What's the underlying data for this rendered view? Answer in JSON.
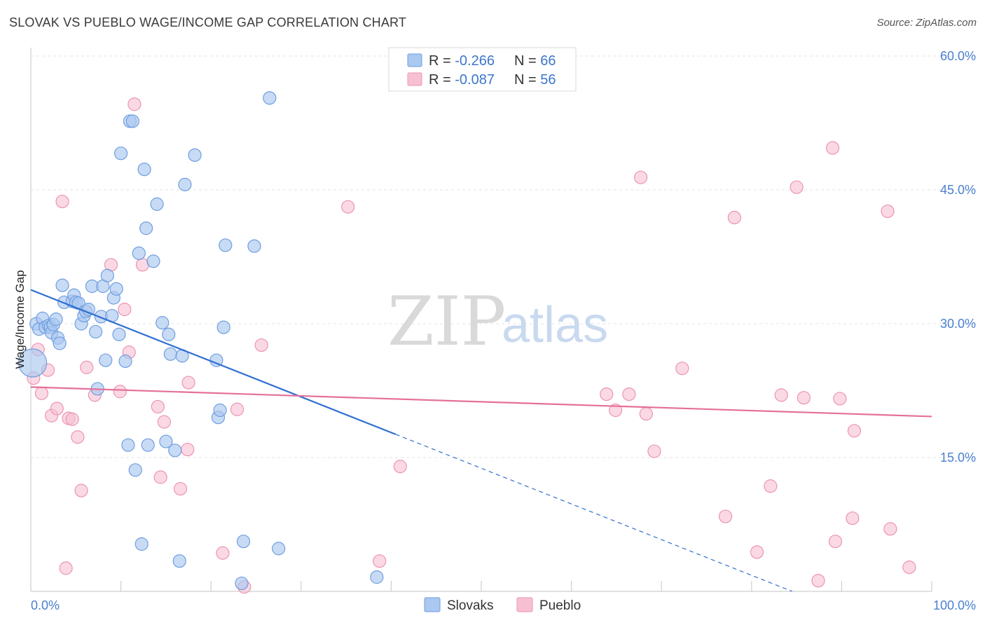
{
  "header": {
    "title": "SLOVAK VS PUEBLO WAGE/INCOME GAP CORRELATION CHART",
    "source": "Source: ZipAtlas.com"
  },
  "legend": {
    "items": [
      {
        "r_label": "R = ",
        "r_value": "-0.266",
        "n_label": "N = ",
        "n_value": "66"
      },
      {
        "r_label": "R = ",
        "r_value": "-0.087",
        "n_label": "N = ",
        "n_value": "56"
      }
    ]
  },
  "bottom_legend": [
    "Slovaks",
    "Pueblo"
  ],
  "watermark": {
    "zip": "ZIP",
    "atlas": "atlas"
  },
  "colors": {
    "slovaks_fill": "#aac8f0",
    "slovaks_stroke": "#6f9ee0",
    "slovaks_line": "#2f6fd0",
    "pueblo_fill": "#f7c0d2",
    "pueblo_stroke": "#ec94b2",
    "pueblo_line": "#e5709a",
    "tick_text": "#4a7fd0",
    "grid": "#e3e3e3"
  },
  "chart_data": {
    "type": "scatter",
    "title": "SLOVAK VS PUEBLO WAGE/INCOME GAP CORRELATION CHART",
    "xlabel": "",
    "ylabel": "Wage/Income Gap",
    "xlim": [
      0,
      100
    ],
    "ylim": [
      0,
      60
    ],
    "x_tick_labels": [
      "0.0%",
      "100.0%"
    ],
    "y_ticks": [
      15,
      30,
      45,
      60
    ],
    "y_tick_labels": [
      "15.0%",
      "30.0%",
      "45.0%",
      "60.0%"
    ],
    "grid": true,
    "legend_position": "top-center",
    "series": [
      {
        "name": "Slovaks",
        "r": -0.266,
        "n": 66,
        "trend": {
          "x0": 0,
          "y0": 33.8,
          "x1": 40.5,
          "y1": 17.6,
          "dashed_to_x": 100,
          "dashed_to_y": -6.2
        },
        "points": [
          [
            0.2,
            25.6
          ],
          [
            0.6,
            30.0
          ],
          [
            0.9,
            29.4
          ],
          [
            1.3,
            30.6
          ],
          [
            1.6,
            29.6
          ],
          [
            2.0,
            29.8
          ],
          [
            2.2,
            29.6
          ],
          [
            2.3,
            29.0
          ],
          [
            2.5,
            29.9
          ],
          [
            2.8,
            30.5
          ],
          [
            3.0,
            28.4
          ],
          [
            3.2,
            27.8
          ],
          [
            3.5,
            34.3
          ],
          [
            3.7,
            32.4
          ],
          [
            4.6,
            32.5
          ],
          [
            4.8,
            33.2
          ],
          [
            5.0,
            32.4
          ],
          [
            5.3,
            32.3
          ],
          [
            5.6,
            30.0
          ],
          [
            5.9,
            30.9
          ],
          [
            6.1,
            31.4
          ],
          [
            6.4,
            31.6
          ],
          [
            6.8,
            34.2
          ],
          [
            7.2,
            29.1
          ],
          [
            7.4,
            22.7
          ],
          [
            7.8,
            30.8
          ],
          [
            8.0,
            34.2
          ],
          [
            8.3,
            25.9
          ],
          [
            8.5,
            35.4
          ],
          [
            9.0,
            30.9
          ],
          [
            9.2,
            32.9
          ],
          [
            9.5,
            33.9
          ],
          [
            9.8,
            28.8
          ],
          [
            10.5,
            25.8
          ],
          [
            10.0,
            49.1
          ],
          [
            10.8,
            16.4
          ],
          [
            11.0,
            52.7
          ],
          [
            11.3,
            52.7
          ],
          [
            11.6,
            13.6
          ],
          [
            12.0,
            37.9
          ],
          [
            12.3,
            5.3
          ],
          [
            12.6,
            47.3
          ],
          [
            12.8,
            40.7
          ],
          [
            13.0,
            16.4
          ],
          [
            13.6,
            37.0
          ],
          [
            14.0,
            43.4
          ],
          [
            14.6,
            30.1
          ],
          [
            15.0,
            16.8
          ],
          [
            15.3,
            28.8
          ],
          [
            15.5,
            26.6
          ],
          [
            16.0,
            15.8
          ],
          [
            16.5,
            3.4
          ],
          [
            16.8,
            26.4
          ],
          [
            17.1,
            45.6
          ],
          [
            18.2,
            48.9
          ],
          [
            20.6,
            25.9
          ],
          [
            20.8,
            19.5
          ],
          [
            21.0,
            20.3
          ],
          [
            21.4,
            29.6
          ],
          [
            21.6,
            38.8
          ],
          [
            23.4,
            0.9
          ],
          [
            23.6,
            5.6
          ],
          [
            24.8,
            38.7
          ],
          [
            26.5,
            55.3
          ],
          [
            27.5,
            4.8
          ],
          [
            38.4,
            1.6
          ]
        ]
      },
      {
        "name": "Pueblo",
        "r": -0.087,
        "n": 56,
        "trend": {
          "x0": 0,
          "y0": 22.9,
          "x1": 100,
          "y1": 19.6
        },
        "points": [
          [
            0.3,
            23.9
          ],
          [
            0.8,
            27.1
          ],
          [
            1.2,
            22.2
          ],
          [
            1.9,
            24.8
          ],
          [
            2.3,
            19.7
          ],
          [
            2.9,
            20.5
          ],
          [
            3.5,
            43.7
          ],
          [
            3.9,
            2.6
          ],
          [
            4.2,
            19.4
          ],
          [
            4.6,
            19.3
          ],
          [
            5.2,
            17.3
          ],
          [
            5.6,
            11.3
          ],
          [
            6.2,
            25.1
          ],
          [
            7.1,
            22.0
          ],
          [
            8.9,
            36.6
          ],
          [
            9.9,
            22.4
          ],
          [
            10.4,
            31.6
          ],
          [
            10.9,
            26.8
          ],
          [
            11.5,
            54.6
          ],
          [
            12.4,
            36.6
          ],
          [
            14.1,
            20.7
          ],
          [
            14.4,
            12.8
          ],
          [
            14.8,
            19.0
          ],
          [
            16.6,
            11.5
          ],
          [
            17.4,
            15.9
          ],
          [
            17.5,
            23.4
          ],
          [
            21.3,
            4.3
          ],
          [
            22.9,
            20.4
          ],
          [
            23.7,
            0.5
          ],
          [
            25.6,
            27.6
          ],
          [
            35.2,
            43.1
          ],
          [
            38.7,
            3.4
          ],
          [
            41.0,
            14.0
          ],
          [
            63.9,
            22.1
          ],
          [
            64.9,
            20.3
          ],
          [
            66.4,
            22.1
          ],
          [
            67.7,
            46.4
          ],
          [
            68.3,
            19.9
          ],
          [
            69.2,
            15.7
          ],
          [
            72.3,
            25.0
          ],
          [
            77.1,
            8.4
          ],
          [
            78.1,
            41.9
          ],
          [
            80.6,
            4.4
          ],
          [
            82.1,
            11.8
          ],
          [
            83.3,
            22.0
          ],
          [
            85.0,
            45.3
          ],
          [
            85.8,
            21.7
          ],
          [
            87.4,
            1.2
          ],
          [
            89.0,
            49.7
          ],
          [
            89.3,
            5.6
          ],
          [
            89.8,
            21.6
          ],
          [
            91.2,
            8.2
          ],
          [
            91.4,
            18.0
          ],
          [
            95.1,
            42.6
          ],
          [
            95.4,
            7.0
          ],
          [
            97.5,
            2.7
          ]
        ]
      }
    ]
  }
}
